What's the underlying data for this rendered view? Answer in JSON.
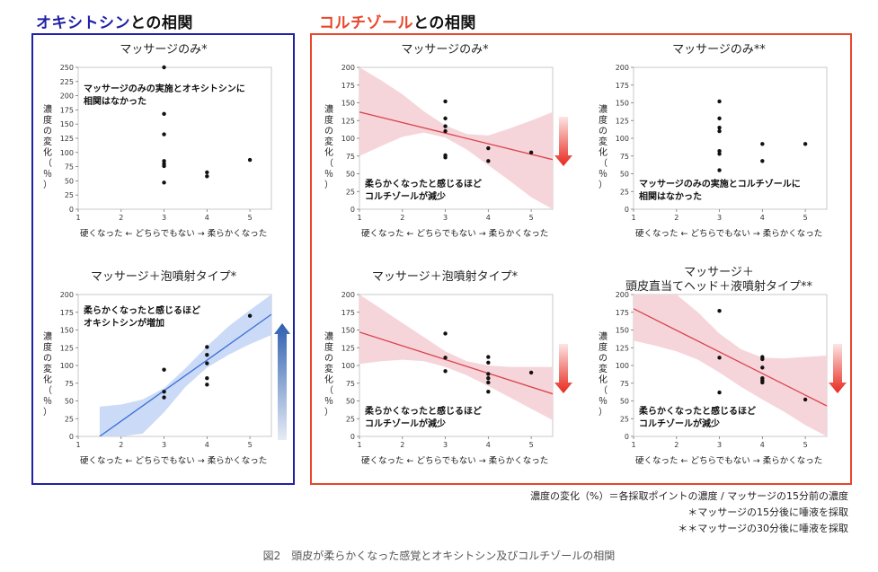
{
  "headers": {
    "oxytocin_prefix": "オキシトシン",
    "oxytocin_suffix": "との相関",
    "cortisol_prefix": "コルチゾール",
    "cortisol_suffix": "との相関"
  },
  "colors": {
    "blue": "#1f1fa8",
    "red": "#e8472b",
    "blue_line": "#3a6fd8",
    "blue_band": "#c8d8f5",
    "red_line": "#d9434d",
    "red_band": "#f6d3d8"
  },
  "common": {
    "y_label": "濃度の変化（％）",
    "x_caption": "硬くなった ← どちらでもない → 柔らかくなった"
  },
  "panels": [
    {
      "id": "ot-massage",
      "title": "マッサージのみ*",
      "note": "マッサージのみの実施とオキシトシンに\n相関はなかった",
      "arrow": "none"
    },
    {
      "id": "ot-foam",
      "title": "マッサージ＋泡噴射タイプ*",
      "note": "柔らかくなったと感じるほど\nオキシトシンが増加",
      "arrow": "up"
    },
    {
      "id": "co-massage",
      "title": "マッサージのみ*",
      "note": "柔らかくなったと感じるほど\nコルチゾールが減少",
      "arrow": "down"
    },
    {
      "id": "co-massage2",
      "title": "マッサージのみ**",
      "note": "マッサージのみの実施とコルチゾールに\n相関はなかった",
      "arrow": "none"
    },
    {
      "id": "co-foam",
      "title": "マッサージ＋泡噴射タイプ*",
      "note": "柔らかくなったと感じるほど\nコルチゾールが減少",
      "arrow": "down"
    },
    {
      "id": "co-liquid",
      "title": "マッサージ＋\n頭皮直当てヘッド＋液噴射タイプ**",
      "note": "柔らかくなったと感じるほど\nコルチゾールが減少",
      "arrow": "down"
    }
  ],
  "chart_data": [
    {
      "type": "scatter",
      "title": "マッサージのみ*",
      "xlim": [
        1,
        5.5
      ],
      "ylim": [
        0,
        250
      ],
      "xticks": [
        1,
        2,
        3,
        4,
        5
      ],
      "yticks": [
        0,
        25,
        50,
        75,
        100,
        125,
        150,
        175,
        200,
        225,
        250
      ],
      "points": [
        [
          3,
          250
        ],
        [
          3,
          168
        ],
        [
          3,
          132
        ],
        [
          3,
          85
        ],
        [
          3,
          80
        ],
        [
          3,
          76
        ],
        [
          3,
          47
        ],
        [
          4,
          65
        ],
        [
          4,
          58
        ],
        [
          5,
          87
        ]
      ],
      "fit": null
    },
    {
      "type": "scatter",
      "title": "マッサージ＋泡噴射タイプ*",
      "xlim": [
        1,
        5.5
      ],
      "ylim": [
        0,
        200
      ],
      "xticks": [
        1,
        2,
        3,
        4,
        5
      ],
      "yticks": [
        0,
        25,
        50,
        75,
        100,
        125,
        150,
        175,
        200
      ],
      "points": [
        [
          3,
          94
        ],
        [
          3,
          63
        ],
        [
          3,
          55
        ],
        [
          4,
          126
        ],
        [
          4,
          115
        ],
        [
          4,
          103
        ],
        [
          4,
          82
        ],
        [
          4,
          73
        ],
        [
          5,
          170
        ]
      ],
      "fit": {
        "x": [
          1.5,
          5.5
        ],
        "y": [
          0,
          172
        ]
      },
      "band": {
        "x": [
          1.5,
          2,
          2.5,
          3,
          3.5,
          4,
          4.5,
          5,
          5.5
        ],
        "lower": [
          0,
          0,
          4,
          34,
          70,
          97,
          115,
          130,
          143
        ],
        "upper": [
          42,
          45,
          52,
          68,
          96,
          127,
          155,
          178,
          200
        ]
      }
    },
    {
      "type": "scatter",
      "title": "マッサージのみ*",
      "xlim": [
        1,
        5.5
      ],
      "ylim": [
        0,
        200
      ],
      "xticks": [
        1,
        2,
        3,
        4,
        5
      ],
      "yticks": [
        0,
        25,
        50,
        75,
        100,
        125,
        150,
        175,
        200
      ],
      "points": [
        [
          3,
          152
        ],
        [
          3,
          128
        ],
        [
          3,
          117
        ],
        [
          3,
          110
        ],
        [
          3,
          76
        ],
        [
          3,
          73
        ],
        [
          4,
          86
        ],
        [
          4,
          68
        ],
        [
          5,
          80
        ]
      ],
      "fit": {
        "x": [
          1,
          5.5
        ],
        "y": [
          137,
          70
        ]
      },
      "band": {
        "x": [
          1,
          1.5,
          2,
          2.5,
          3,
          3.5,
          4,
          4.5,
          5,
          5.5
        ],
        "lower": [
          75,
          89,
          102,
          108,
          101,
          84,
          62,
          40,
          17,
          0
        ],
        "upper": [
          200,
          182,
          162,
          138,
          118,
          106,
          104,
          114,
          125,
          137
        ]
      }
    },
    {
      "type": "scatter",
      "title": "マッサージのみ**",
      "xlim": [
        1,
        5.5
      ],
      "ylim": [
        0,
        200
      ],
      "xticks": [
        1,
        2,
        3,
        4,
        5
      ],
      "yticks": [
        0,
        25,
        50,
        75,
        100,
        125,
        150,
        175,
        200
      ],
      "points": [
        [
          3,
          152
        ],
        [
          3,
          128
        ],
        [
          3,
          115
        ],
        [
          3,
          110
        ],
        [
          3,
          82
        ],
        [
          3,
          78
        ],
        [
          3,
          55
        ],
        [
          4,
          92
        ],
        [
          4,
          68
        ],
        [
          5,
          92
        ]
      ],
      "fit": null
    },
    {
      "type": "scatter",
      "title": "マッサージ＋泡噴射タイプ*",
      "xlim": [
        1,
        5.5
      ],
      "ylim": [
        0,
        200
      ],
      "xticks": [
        1,
        2,
        3,
        4,
        5
      ],
      "yticks": [
        0,
        25,
        50,
        75,
        100,
        125,
        150,
        175,
        200
      ],
      "points": [
        [
          3,
          145
        ],
        [
          3,
          111
        ],
        [
          3,
          92
        ],
        [
          4,
          112
        ],
        [
          4,
          104
        ],
        [
          4,
          88
        ],
        [
          4,
          82
        ],
        [
          4,
          76
        ],
        [
          4,
          63
        ],
        [
          5,
          90
        ]
      ],
      "fit": {
        "x": [
          1,
          5.5
        ],
        "y": [
          147,
          60
        ]
      },
      "band": {
        "x": [
          1,
          1.5,
          2,
          2.5,
          3,
          3.5,
          4,
          4.5,
          5,
          5.5
        ],
        "lower": [
          102,
          106,
          108,
          106,
          98,
          86,
          71,
          55,
          39,
          23
        ],
        "upper": [
          200,
          180,
          160,
          140,
          120,
          106,
          100,
          98,
          98,
          98
        ]
      }
    },
    {
      "type": "scatter",
      "title": "マッサージ＋頭皮直当てヘッド＋液噴射タイプ**",
      "xlim": [
        1,
        5.5
      ],
      "ylim": [
        0,
        200
      ],
      "xticks": [
        1,
        2,
        3,
        4,
        5
      ],
      "yticks": [
        0,
        25,
        50,
        75,
        100,
        125,
        150,
        175,
        200
      ],
      "points": [
        [
          3,
          177
        ],
        [
          3,
          111
        ],
        [
          3,
          62
        ],
        [
          4,
          112
        ],
        [
          4,
          109
        ],
        [
          4,
          97
        ],
        [
          4,
          82
        ],
        [
          4,
          79
        ],
        [
          4,
          76
        ],
        [
          5,
          52
        ]
      ],
      "fit": {
        "x": [
          1,
          5.5
        ],
        "y": [
          180,
          43
        ]
      },
      "band": {
        "x": [
          1,
          1.5,
          2,
          2.5,
          3,
          3.5,
          4,
          4.5,
          5,
          5.5
        ],
        "lower": [
          135,
          128,
          120,
          108,
          90,
          70,
          52,
          35,
          16,
          0
        ],
        "upper": [
          200,
          200,
          200,
          175,
          145,
          123,
          111,
          110,
          112,
          114
        ]
      }
    }
  ],
  "footnotes": {
    "definition": "濃度の変化（%）＝各採取ポイントの濃度 / マッサージの15分前の濃度",
    "single": "＊マッサージの15分後に唾液を採取",
    "double": "＊＊マッサージの30分後に唾液を採取"
  },
  "caption": "図2　頭皮が柔らかくなった感覚とオキシトシン及びコルチゾールの相関"
}
